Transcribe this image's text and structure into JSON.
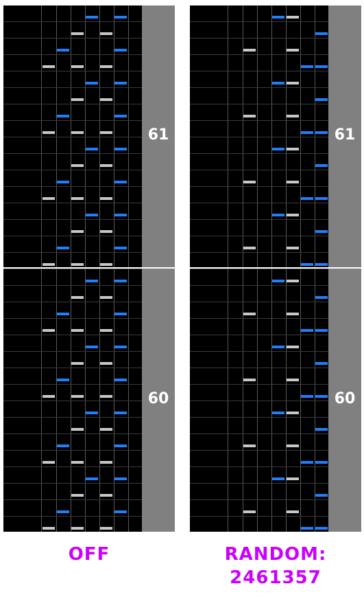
{
  "panels": [
    {
      "id": "off",
      "label_lines": [
        "OFF"
      ],
      "measures": [
        {
          "number": "61",
          "notes": [
            [
              2,
              5
            ],
            [
              4,
              5
            ],
            [
              1,
              6
            ],
            [
              3,
              6
            ],
            [
              2,
              7
            ],
            [
              4,
              7
            ],
            [
              0,
              8
            ],
            [
              1,
              8
            ],
            [
              3,
              8
            ],
            [
              2,
              9
            ],
            [
              4,
              9
            ],
            [
              1,
              10
            ],
            [
              3,
              10
            ],
            [
              2,
              11
            ],
            [
              4,
              11
            ],
            [
              0,
              12
            ],
            [
              1,
              12
            ],
            [
              3,
              12
            ]
          ]
        },
        {
          "number": "60",
          "notes": [
            [
              2,
              5
            ],
            [
              4,
              5
            ],
            [
              1,
              6
            ],
            [
              3,
              6
            ],
            [
              2,
              7
            ],
            [
              4,
              7
            ],
            [
              0,
              8
            ],
            [
              1,
              8
            ],
            [
              6,
              8
            ],
            [
              2,
              9
            ],
            [
              4,
              9
            ],
            [
              1,
              10
            ],
            [
              3,
              10
            ],
            [
              2,
              11
            ],
            [
              4,
              11
            ],
            [
              0,
              12
            ],
            [
              1,
              12
            ],
            [
              3,
              12
            ]
          ]
        }
      ]
    },
    {
      "id": "random",
      "label_lines": [
        "RANDOM:",
        "2461357"
      ],
      "measures": [
        {
          "number": "61",
          "notes": [
            [
              3,
              1
            ],
            [
              4,
              1
            ],
            [
              6,
              1
            ],
            [
              2,
              2
            ],
            [
              4,
              2
            ],
            [
              3,
              3
            ],
            [
              5,
              3
            ],
            [
              6,
              3
            ],
            [
              3,
              1
            ],
            [
              4,
              1
            ],
            [
              6,
              1
            ],
            [
              2,
              2
            ],
            [
              4,
              2
            ],
            [
              3,
              3
            ],
            [
              5,
              3
            ],
            [
              6,
              3
            ]
          ]
        },
        {
          "number": "60",
          "notes": [
            [
              3,
              1
            ],
            [
              4,
              1
            ],
            [
              6,
              1
            ],
            [
              2,
              2
            ],
            [
              4,
              2
            ],
            [
              3,
              3
            ],
            [
              5,
              3
            ],
            [
              6,
              3
            ]
          ]
        }
      ]
    }
  ],
  "colors": {
    "background": "#000000",
    "blue_note": "#1f7fff",
    "white_note": "#c8c8c8",
    "sidebar": "#808080",
    "label": "#cc00ff"
  }
}
